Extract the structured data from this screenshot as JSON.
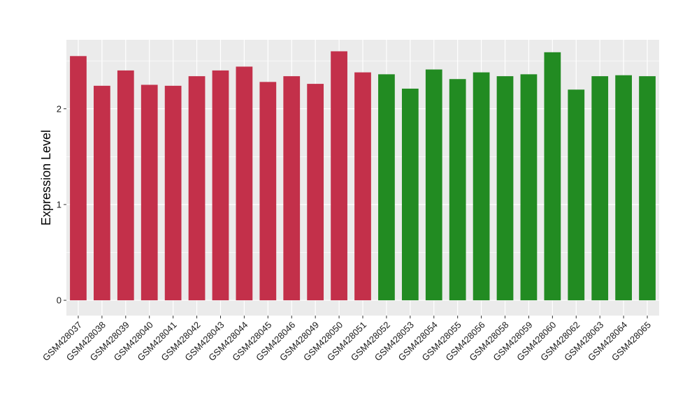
{
  "chart_data": {
    "type": "bar",
    "title": "",
    "xlabel": "",
    "ylabel": "Expression Level",
    "ylim": [
      -0.16,
      2.72
    ],
    "yticks": [
      0,
      1,
      2
    ],
    "grid": true,
    "legend": "none",
    "categories": [
      "GSM428037",
      "GSM428038",
      "GSM428039",
      "GSM428040",
      "GSM428041",
      "GSM428042",
      "GSM428043",
      "GSM428044",
      "GSM428045",
      "GSM428046",
      "GSM428049",
      "GSM428050",
      "GSM428051",
      "GSM428052",
      "GSM428053",
      "GSM428054",
      "GSM428055",
      "GSM428056",
      "GSM428058",
      "GSM428059",
      "GSM428060",
      "GSM428062",
      "GSM428063",
      "GSM428064",
      "GSM428065"
    ],
    "values": [
      2.55,
      2.24,
      2.4,
      2.25,
      2.24,
      2.34,
      2.4,
      2.44,
      2.28,
      2.34,
      2.26,
      2.6,
      2.38,
      2.36,
      2.21,
      2.41,
      2.31,
      2.38,
      2.34,
      2.36,
      2.59,
      2.2,
      2.34,
      2.35,
      2.34
    ],
    "group_colors": [
      "#C3304A",
      "#C3304A",
      "#C3304A",
      "#C3304A",
      "#C3304A",
      "#C3304A",
      "#C3304A",
      "#C3304A",
      "#C3304A",
      "#C3304A",
      "#C3304A",
      "#C3304A",
      "#C3304A",
      "#228B22",
      "#228B22",
      "#228B22",
      "#228B22",
      "#228B22",
      "#228B22",
      "#228B22",
      "#228B22",
      "#228B22",
      "#228B22",
      "#228B22",
      "#228B22"
    ],
    "panel_background": "#EBEBEB",
    "grid_color": "#FFFFFF"
  }
}
